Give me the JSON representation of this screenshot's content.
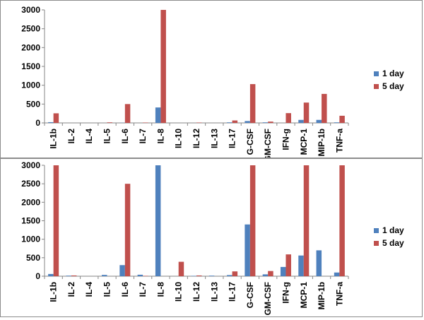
{
  "chart_data": [
    {
      "type": "bar",
      "title": "",
      "xlabel": "",
      "ylabel": "",
      "categories": [
        "IL-1b",
        "IL-2",
        "IL-4",
        "IL-5",
        "IL-6",
        "IL-7",
        "IL-8",
        "IL-10",
        "IL-12",
        "IL-13",
        "IL-17",
        "G-CSF",
        "GM-CSF",
        "IFN-g",
        "MCP-1",
        "MIP-1b",
        "TNF-a"
      ],
      "series": [
        {
          "name": "1 day",
          "color": "#4f81bd",
          "values": [
            20,
            0,
            0,
            0,
            5,
            0,
            410,
            0,
            0,
            0,
            15,
            50,
            15,
            0,
            80,
            80,
            15
          ]
        },
        {
          "name": "5 day",
          "color": "#c0504d",
          "values": [
            255,
            0,
            0,
            15,
            500,
            10,
            3000,
            0,
            10,
            0,
            65,
            1030,
            35,
            260,
            540,
            770,
            190
          ]
        }
      ],
      "ylim": [
        0,
        3000
      ],
      "yticks": [
        0,
        500,
        1000,
        1500,
        2000,
        2500,
        3000
      ],
      "grid": false,
      "legend": "right"
    },
    {
      "type": "bar",
      "title": "",
      "xlabel": "",
      "ylabel": "",
      "categories": [
        "IL-1b",
        "IL-2",
        "IL-4",
        "IL-5",
        "IL-6",
        "IL-7",
        "IL-8",
        "IL-10",
        "IL-12",
        "IL-13",
        "IL-17",
        "G-CSF",
        "GM-CSF",
        "IFN-g",
        "MCP-1",
        "MIP-1b",
        "TNF-a"
      ],
      "series": [
        {
          "name": "1 day",
          "color": "#4f81bd",
          "values": [
            60,
            15,
            0,
            35,
            300,
            40,
            3000,
            0,
            10,
            15,
            30,
            1400,
            50,
            250,
            560,
            700,
            100
          ]
        },
        {
          "name": "5 day",
          "color": "#c0504d",
          "values": [
            3000,
            20,
            0,
            0,
            2500,
            10,
            0,
            390,
            20,
            0,
            130,
            3000,
            140,
            590,
            3000,
            0,
            3000
          ]
        }
      ],
      "ylim": [
        0,
        3000
      ],
      "yticks": [
        0,
        500,
        1000,
        1500,
        2000,
        2500,
        3000
      ],
      "grid": false,
      "legend": "right"
    }
  ]
}
